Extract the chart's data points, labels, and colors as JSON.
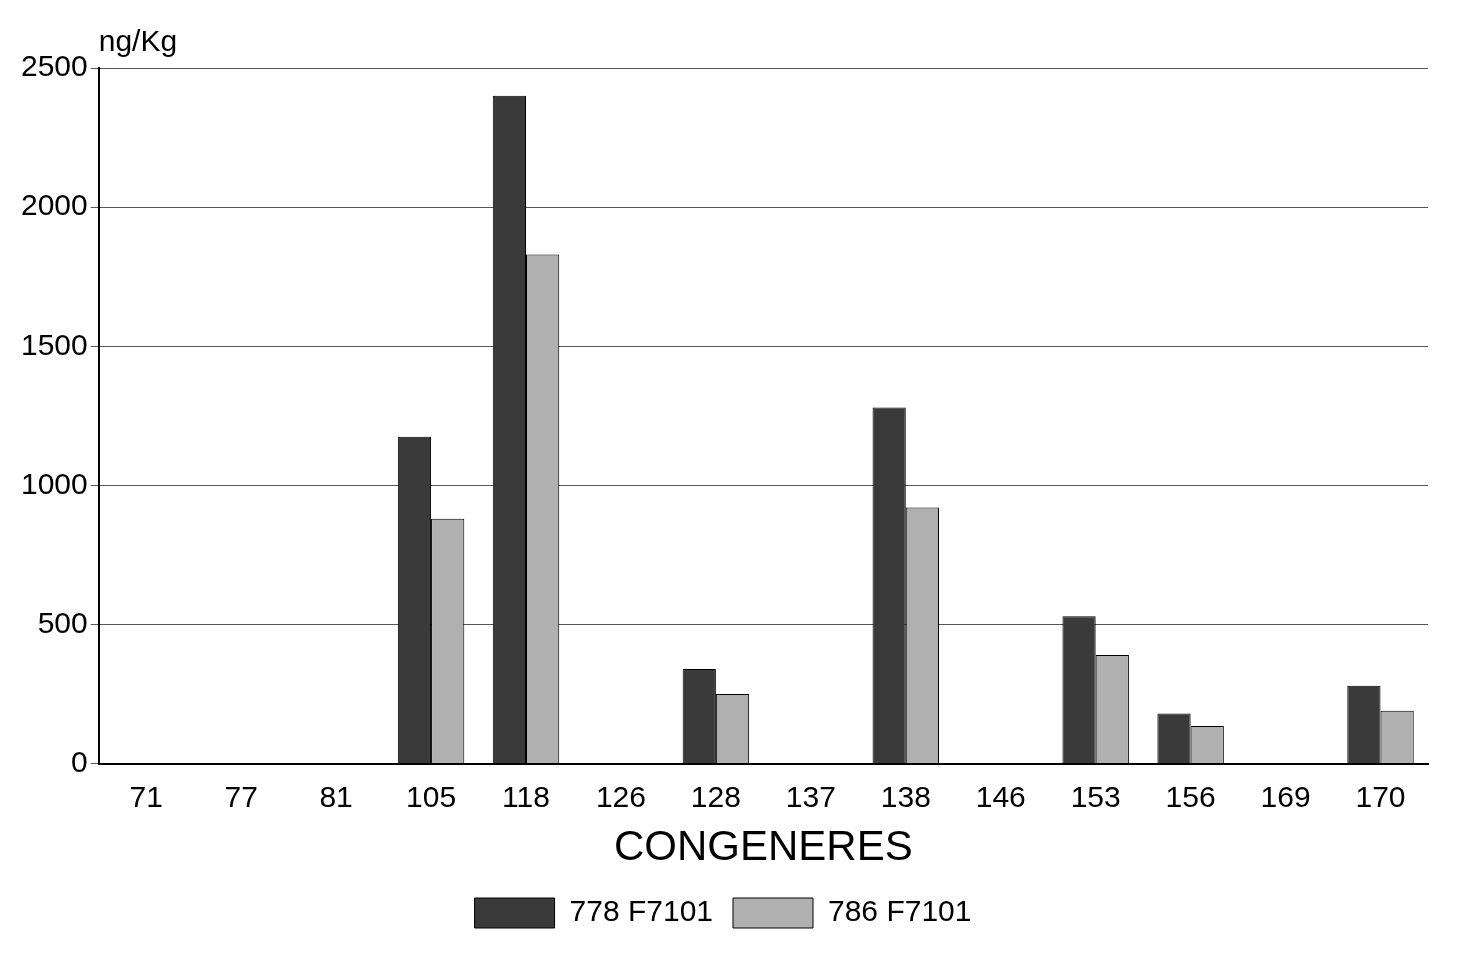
{
  "chart_data": {
    "type": "bar",
    "ylabel": "ng/Kg",
    "xlabel": "CONGENERES",
    "categories": [
      "71",
      "77",
      "81",
      "105",
      "118",
      "126",
      "128",
      "137",
      "138",
      "146",
      "153",
      "156",
      "169",
      "170"
    ],
    "series": [
      {
        "name": "778 F7101",
        "color": "#3a3a3a",
        "values": [
          0,
          0,
          0,
          1175,
          2400,
          0,
          340,
          0,
          1280,
          0,
          530,
          180,
          0,
          280
        ]
      },
      {
        "name": "786 F7101",
        "color": "#b0b0b0",
        "values": [
          0,
          0,
          0,
          880,
          1830,
          0,
          250,
          0,
          920,
          0,
          390,
          135,
          0,
          190
        ]
      }
    ],
    "ylim": [
      0,
      2500
    ],
    "yticks": [
      0,
      500,
      1000,
      1500,
      2000,
      2500
    ],
    "grid": "y",
    "legend": "bottom"
  }
}
